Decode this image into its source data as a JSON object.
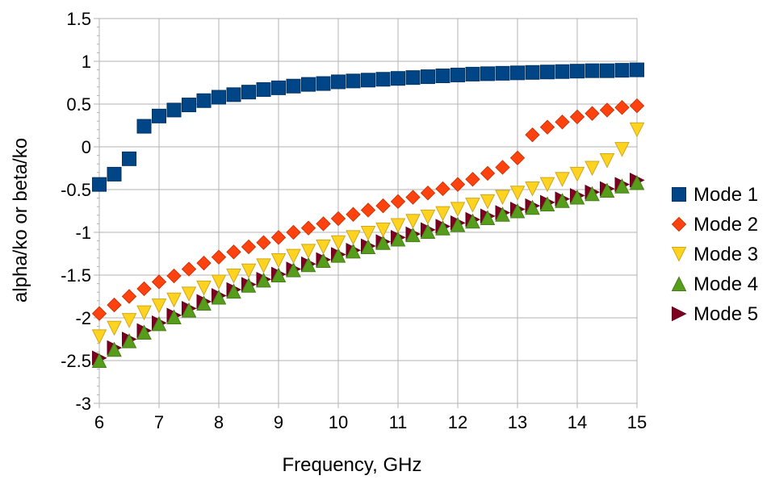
{
  "chart_data": {
    "type": "scatter",
    "title": "",
    "xlabel": "Frequency, GHz",
    "ylabel": "alpha/ko or beta/ko",
    "xlim": [
      6,
      15
    ],
    "ylim": [
      -3,
      1.5
    ],
    "xticks": [
      "6",
      "7",
      "8",
      "9",
      "10",
      "11",
      "12",
      "13",
      "14",
      "15"
    ],
    "yticks": [
      "1.5",
      "1",
      "0.5",
      "0",
      "-0.5",
      "-1",
      "-1.5",
      "-2",
      "-2.5",
      "-3"
    ],
    "grid": true,
    "legend_position": "right",
    "x": [
      6.0,
      6.25,
      6.5,
      6.75,
      7.0,
      7.25,
      7.5,
      7.75,
      8.0,
      8.25,
      8.5,
      8.75,
      9.0,
      9.25,
      9.5,
      9.75,
      10.0,
      10.25,
      10.5,
      10.75,
      11.0,
      11.25,
      11.5,
      11.75,
      12.0,
      12.25,
      12.5,
      12.75,
      13.0,
      13.25,
      13.5,
      13.75,
      14.0,
      14.25,
      14.5,
      14.75,
      15.0
    ],
    "series": [
      {
        "name": "Mode 1",
        "marker": "square",
        "color": "#004586",
        "values": [
          -0.44,
          -0.32,
          -0.14,
          0.24,
          0.36,
          0.43,
          0.49,
          0.54,
          0.58,
          0.61,
          0.64,
          0.67,
          0.69,
          0.71,
          0.73,
          0.74,
          0.76,
          0.77,
          0.78,
          0.79,
          0.8,
          0.81,
          0.82,
          0.83,
          0.84,
          0.85,
          0.855,
          0.86,
          0.865,
          0.87,
          0.875,
          0.88,
          0.885,
          0.89,
          0.89,
          0.895,
          0.9
        ]
      },
      {
        "name": "Mode 2",
        "marker": "diamond",
        "color": "#ff420e",
        "values": [
          -1.95,
          -1.85,
          -1.75,
          -1.66,
          -1.58,
          -1.51,
          -1.43,
          -1.36,
          -1.29,
          -1.23,
          -1.17,
          -1.12,
          -1.06,
          -1.0,
          -0.95,
          -0.9,
          -0.84,
          -0.79,
          -0.74,
          -0.69,
          -0.64,
          -0.59,
          -0.54,
          -0.49,
          -0.44,
          -0.38,
          -0.31,
          -0.24,
          -0.13,
          0.14,
          0.23,
          0.29,
          0.35,
          0.39,
          0.43,
          0.46,
          0.48
        ]
      },
      {
        "name": "Mode 3",
        "marker": "triangle-down",
        "color": "#ffd320",
        "values": [
          -2.22,
          -2.12,
          -2.03,
          -1.94,
          -1.86,
          -1.79,
          -1.72,
          -1.65,
          -1.58,
          -1.51,
          -1.45,
          -1.39,
          -1.33,
          -1.28,
          -1.22,
          -1.17,
          -1.12,
          -1.06,
          -1.01,
          -0.97,
          -0.92,
          -0.87,
          -0.82,
          -0.78,
          -0.73,
          -0.68,
          -0.64,
          -0.59,
          -0.54,
          -0.49,
          -0.44,
          -0.38,
          -0.32,
          -0.25,
          -0.16,
          -0.03,
          0.2
        ]
      },
      {
        "name": "Mode 4",
        "marker": "triangle-up",
        "color": "#579d1c",
        "values": [
          -2.5,
          -2.37,
          -2.27,
          -2.17,
          -2.07,
          -1.99,
          -1.91,
          -1.83,
          -1.76,
          -1.69,
          -1.62,
          -1.56,
          -1.5,
          -1.44,
          -1.38,
          -1.33,
          -1.27,
          -1.22,
          -1.17,
          -1.12,
          -1.08,
          -1.03,
          -0.99,
          -0.95,
          -0.91,
          -0.87,
          -0.83,
          -0.79,
          -0.75,
          -0.71,
          -0.67,
          -0.63,
          -0.59,
          -0.55,
          -0.51,
          -0.46,
          -0.42
        ]
      },
      {
        "name": "Mode 5",
        "marker": "triangle-right",
        "color": "#7e0021",
        "values": [
          -2.47,
          -2.35,
          -2.25,
          -2.15,
          -2.06,
          -1.97,
          -1.89,
          -1.81,
          -1.74,
          -1.67,
          -1.61,
          -1.55,
          -1.49,
          -1.43,
          -1.37,
          -1.32,
          -1.26,
          -1.21,
          -1.16,
          -1.11,
          -1.06,
          -1.02,
          -0.97,
          -0.93,
          -0.89,
          -0.85,
          -0.81,
          -0.77,
          -0.73,
          -0.69,
          -0.65,
          -0.61,
          -0.57,
          -0.53,
          -0.49,
          -0.44,
          -0.39
        ]
      }
    ]
  }
}
